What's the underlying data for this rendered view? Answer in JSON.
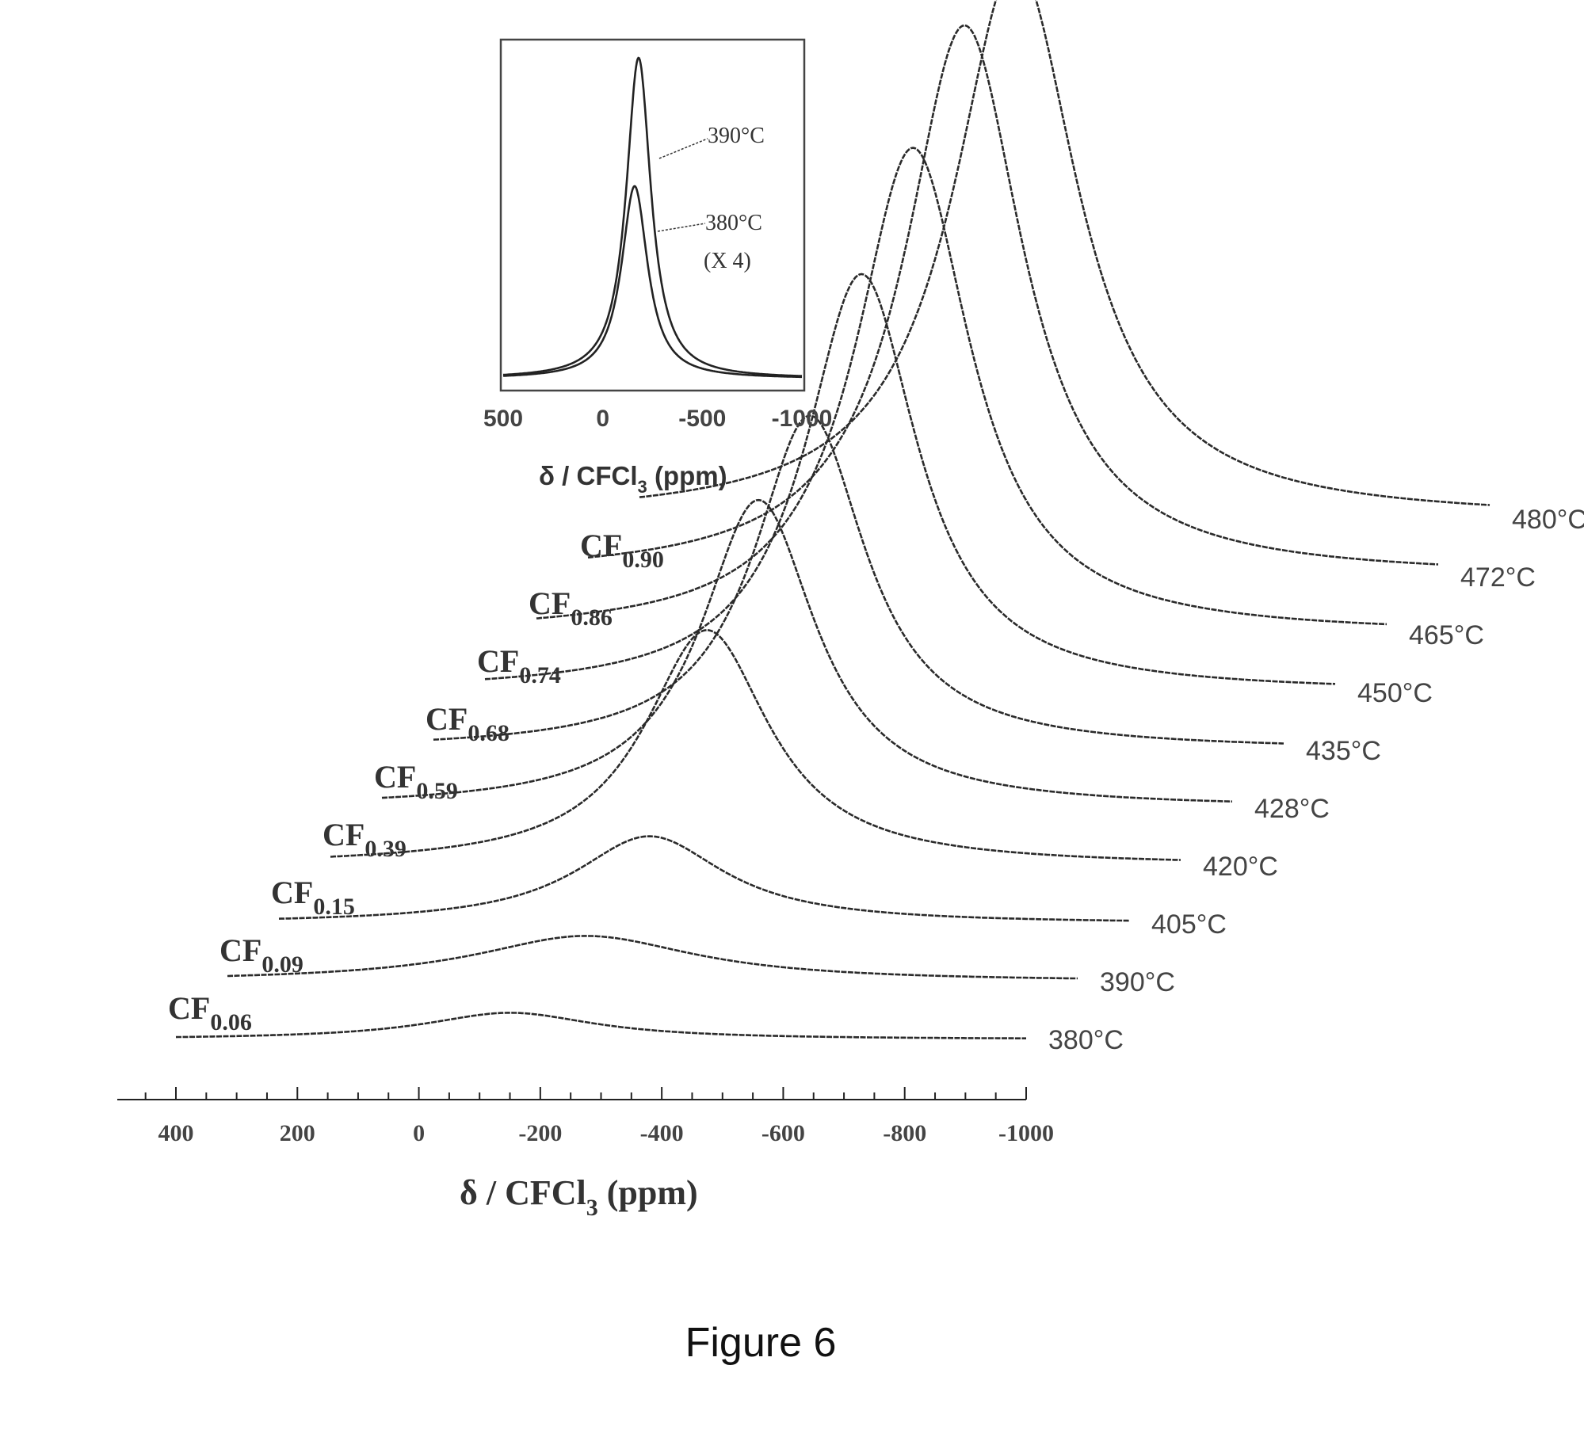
{
  "caption": "Figure 6",
  "chart_data": [
    {
      "type": "line",
      "xlabel_base": "δ / CFCl",
      "xlabel_sub": "3",
      "xlabel_unit": "(ppm)",
      "xlim": [
        400,
        -1000
      ],
      "xticks": [
        400,
        200,
        0,
        -200,
        -400,
        -600,
        -800,
        -1000
      ],
      "xtick_labels": [
        "400",
        "200",
        "0",
        "-200",
        "-400",
        "-600",
        "-800",
        "-1000"
      ],
      "series": [
        {
          "name": "CF0.06",
          "formula_base": "CF",
          "formula_sub": "0.06",
          "temperature": "380°C",
          "peak_ppm": -150,
          "height": 0.07,
          "width": 170,
          "min_ppm": 400,
          "max_ppm": -1000
        },
        {
          "name": "CF0.09",
          "formula_base": "CF",
          "formula_sub": "0.09",
          "temperature": "390°C",
          "peak_ppm": -190,
          "height": 0.12,
          "width": 220,
          "min_ppm": 400,
          "max_ppm": -1000
        },
        {
          "name": "CF0.15",
          "formula_base": "CF",
          "formula_sub": "0.15",
          "temperature": "405°C",
          "peak_ppm": -210,
          "height": 0.23,
          "width": 150,
          "min_ppm": 400,
          "max_ppm": -1000
        },
        {
          "name": "CF0.39",
          "formula_base": "CF",
          "formula_sub": "0.39",
          "temperature": "420°C",
          "peak_ppm": -220,
          "height": 0.62,
          "width": 125,
          "min_ppm": 400,
          "max_ppm": -1000
        },
        {
          "name": "CF0.59",
          "formula_base": "CF",
          "formula_sub": "0.59",
          "temperature": "428°C",
          "peak_ppm": -220,
          "height": 0.81,
          "width": 115,
          "min_ppm": 400,
          "max_ppm": -1000
        },
        {
          "name": "CF0.68",
          "formula_base": "CF",
          "formula_sub": "0.68",
          "temperature": "435°C",
          "peak_ppm": -220,
          "height": 0.88,
          "width": 112,
          "min_ppm": 400,
          "max_ppm": -1000
        },
        {
          "name": "CF0.74",
          "formula_base": "CF",
          "formula_sub": "0.74",
          "temperature": "450°C",
          "peak_ppm": -220,
          "height": 1.1,
          "width": 112,
          "min_ppm": 400,
          "max_ppm": -1000
        },
        {
          "name": "CF0.86",
          "formula_base": "CF",
          "formula_sub": "0.86",
          "temperature": "465°C",
          "peak_ppm": -220,
          "height": 1.28,
          "width": 115,
          "min_ppm": 400,
          "max_ppm": -1000
        },
        {
          "name": "CF0.90",
          "formula_base": "CF",
          "formula_sub": "0.90",
          "temperature": "472°C",
          "peak_ppm": -220,
          "height": 1.45,
          "width": 118,
          "min_ppm": 400,
          "max_ppm": -1000
        },
        {
          "name": "",
          "formula_base": "",
          "formula_sub": "",
          "temperature": "480°C",
          "peak_ppm": -220,
          "height": 1.46,
          "width": 125,
          "min_ppm": 400,
          "max_ppm": -1000
        }
      ]
    },
    {
      "type": "line",
      "xlabel_base": "δ / CFCl",
      "xlabel_sub": "3",
      "xlabel_unit": "(ppm)",
      "xlim": [
        500,
        -1000
      ],
      "xticks": [
        500,
        0,
        -500,
        -1000
      ],
      "xtick_labels": [
        "500",
        "0",
        "-500",
        "-1000"
      ],
      "series": [
        {
          "name": "390°C",
          "peak_ppm": -180,
          "height": 1.0,
          "width": 75
        },
        {
          "name": "380°C",
          "peak_ppm": -160,
          "height": 0.6,
          "width": 80
        }
      ],
      "annotations": [
        {
          "text": "390°C"
        },
        {
          "text": "380°C"
        },
        {
          "text": "(X 4)"
        }
      ]
    }
  ]
}
